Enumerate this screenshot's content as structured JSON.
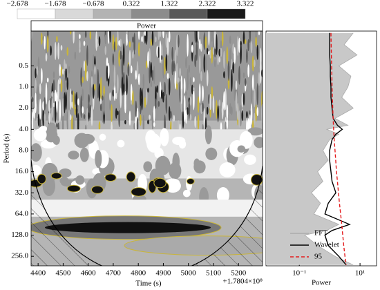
{
  "chart_data": [
    {
      "type": "heatmap",
      "colorbar_title": "Power",
      "clim": [
        -2.678,
        3.322
      ],
      "colorbar_ticks": [
        {
          "value": -2.678,
          "label": "−2.678"
        },
        {
          "value": -1.678,
          "label": "−1.678"
        },
        {
          "value": -0.678,
          "label": "−0.678"
        },
        0.322,
        1.322,
        2.322,
        3.322
      ],
      "colorbar_colors": [
        "#ffffff",
        "#d9d9d9",
        "#b3b3b3",
        "#8c8c8c",
        "#595959",
        "#1a1a1a"
      ],
      "xlabel": "Time (s)",
      "offset_label": "+1.7804×10⁸",
      "ylabel": "Period (s)",
      "xlim": [
        4372,
        5296
      ],
      "xticks": [
        4400,
        4500,
        4600,
        4700,
        4800,
        4900,
        5000,
        5100,
        5200
      ],
      "ylim": [
        0.16,
        350
      ],
      "ylog": true,
      "yticks": [
        0.5,
        {
          "value": 1,
          "label": "1.0"
        },
        {
          "value": 2,
          "label": "2.0"
        },
        {
          "value": 4,
          "label": "4.0"
        },
        {
          "value": 8,
          "label": "8.0"
        },
        {
          "value": 16,
          "label": "16.0"
        },
        {
          "value": 32,
          "label": "32.0"
        },
        {
          "value": 64,
          "label": "64.0"
        },
        {
          "value": 128,
          "label": "128.0"
        },
        {
          "value": 256,
          "label": "256.0"
        }
      ]
    },
    {
      "type": "line",
      "xlabel": "Power",
      "xlog": true,
      "xlim": [
        0.008,
        35
      ],
      "xticks": [
        {
          "value": 0.1,
          "label": "10⁻¹"
        },
        {
          "value": 10,
          "label": "10¹"
        }
      ],
      "legend": "lower right",
      "periods": [
        0.17,
        0.25,
        0.35,
        0.5,
        0.7,
        1,
        1.4,
        2,
        2.8,
        3.5,
        4,
        4.7,
        5.6,
        8,
        11,
        16,
        22,
        32,
        45,
        64,
        90,
        110,
        128,
        180,
        256,
        340
      ],
      "series": [
        {
          "name": "FFT",
          "color": "#aaaaaa",
          "fill": true,
          "values": [
            6,
            3,
            8,
            2,
            5,
            4,
            2.5,
            6,
            1.5,
            4,
            0.8,
            2,
            1,
            0.6,
            0.9,
            0.4,
            0.6,
            0.25,
            0.5,
            0.3,
            2,
            0.8,
            0.15,
            0.4,
            1.5,
            6
          ]
        },
        {
          "name": "Wavelet",
          "color": "#000000",
          "values": [
            1,
            1,
            1,
            1.05,
            1.05,
            1.1,
            1.1,
            1.2,
            1.3,
            1.8,
            2.6,
            1.6,
            1.2,
            1,
            1,
            1.1,
            1.2,
            1.6,
            0.9,
            0.7,
            4.5,
            1.2,
            0.7,
            0.9,
            2,
            3.5
          ]
        },
        {
          "name": "95",
          "color": "#e41a1c",
          "dashed": true,
          "values": [
            1.1,
            1.12,
            1.14,
            1.16,
            1.18,
            1.2,
            1.23,
            1.26,
            1.3,
            1.33,
            1.35,
            1.38,
            1.41,
            1.5,
            1.58,
            1.68,
            1.8,
            1.95,
            2.1,
            2.3,
            2.5,
            2.6,
            2.7,
            2.9,
            3.2,
            3.5
          ]
        }
      ]
    }
  ]
}
